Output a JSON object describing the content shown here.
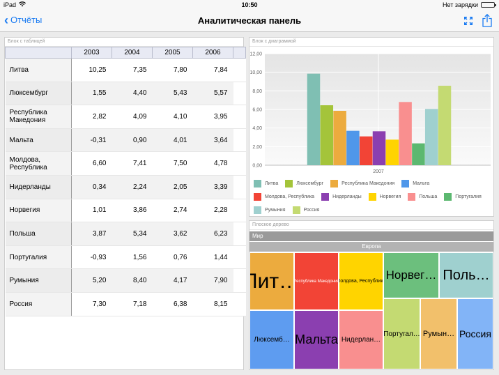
{
  "status": {
    "device": "iPad",
    "time": "10:50",
    "charge": "Нет зарядки"
  },
  "nav": {
    "back_label": "Отчёты",
    "title": "Аналитическая панель"
  },
  "table_block": {
    "caption": "Блок с таблицей",
    "columns": [
      "2003",
      "2004",
      "2005",
      "2006"
    ],
    "rows": [
      {
        "name": "Литва",
        "values": [
          "10,25",
          "7,35",
          "7,80",
          "7,84"
        ]
      },
      {
        "name": "Люксембург",
        "values": [
          "1,55",
          "4,40",
          "5,43",
          "5,57"
        ]
      },
      {
        "name": "Республика Македония",
        "values": [
          "2,82",
          "4,09",
          "4,10",
          "3,95"
        ]
      },
      {
        "name": "Мальта",
        "values": [
          "-0,31",
          "0,90",
          "4,01",
          "3,64"
        ]
      },
      {
        "name": "Молдова, Республика",
        "values": [
          "6,60",
          "7,41",
          "7,50",
          "4,78"
        ]
      },
      {
        "name": "Нидерланды",
        "values": [
          "0,34",
          "2,24",
          "2,05",
          "3,39"
        ]
      },
      {
        "name": "Норвегия",
        "values": [
          "1,01",
          "3,86",
          "2,74",
          "2,28"
        ]
      },
      {
        "name": "Польша",
        "values": [
          "3,87",
          "5,34",
          "3,62",
          "6,23"
        ]
      },
      {
        "name": "Португалия",
        "values": [
          "-0,93",
          "1,56",
          "0,76",
          "1,44"
        ]
      },
      {
        "name": "Румыния",
        "values": [
          "5,20",
          "8,40",
          "4,17",
          "7,90"
        ]
      },
      {
        "name": "Россия",
        "values": [
          "7,30",
          "7,18",
          "6,38",
          "8,15"
        ]
      }
    ]
  },
  "chart_block": {
    "caption": "Блок с диаграммой"
  },
  "chart_data": {
    "type": "bar",
    "categories": [
      "2007"
    ],
    "ylim": [
      0,
      12
    ],
    "yticks": [
      "0,00",
      "2,00",
      "4,00",
      "6,00",
      "8,00",
      "10,00",
      "12,00"
    ],
    "grid": true,
    "legend_position": "bottom",
    "series": [
      {
        "name": "Литва",
        "color": "#7fbfb3",
        "values": [
          9.85
        ]
      },
      {
        "name": "Люксембург",
        "color": "#a4c43a",
        "values": [
          6.45
        ]
      },
      {
        "name": "Республика Македония",
        "color": "#ecab3e",
        "values": [
          5.85
        ]
      },
      {
        "name": "Мальта",
        "color": "#4f97ea",
        "values": [
          3.7
        ]
      },
      {
        "name": "Молдова, Республика",
        "color": "#f24436",
        "values": [
          3.1
        ]
      },
      {
        "name": "Нидерланды",
        "color": "#8b3fb0",
        "values": [
          3.65
        ]
      },
      {
        "name": "Норвегия",
        "color": "#ffd400",
        "values": [
          2.75
        ]
      },
      {
        "name": "Польша",
        "color": "#f98f8f",
        "values": [
          6.8
        ]
      },
      {
        "name": "Португалия",
        "color": "#5cb870",
        "values": [
          2.35
        ]
      },
      {
        "name": "Румыния",
        "color": "#9fd0cf",
        "values": [
          6.05
        ]
      },
      {
        "name": "Россия",
        "color": "#c4da72",
        "values": [
          8.55
        ]
      }
    ]
  },
  "tree_block": {
    "caption": "Плоское дерево",
    "root": "Мир",
    "group": "Европа",
    "cells": [
      {
        "label": "Лит…",
        "color": "#ecab3e"
      },
      {
        "label": "Республика Македония",
        "color": "#f24436"
      },
      {
        "label": "Молдова, Республика",
        "color": "#ffd400"
      },
      {
        "label": "Норвег…",
        "color": "#6cbf7d"
      },
      {
        "label": "Поль…",
        "color": "#9fd0cf"
      },
      {
        "label": "Люксемб…",
        "color": "#5e9cf0"
      },
      {
        "label": "Мальта",
        "color": "#8b3fb0"
      },
      {
        "label": "Нидерлан…",
        "color": "#f98f8f"
      },
      {
        "label": "Португал…",
        "color": "#c4da72"
      },
      {
        "label": "Румын…",
        "color": "#f2c06b"
      },
      {
        "label": "Россия",
        "color": "#82b4f7"
      }
    ]
  }
}
